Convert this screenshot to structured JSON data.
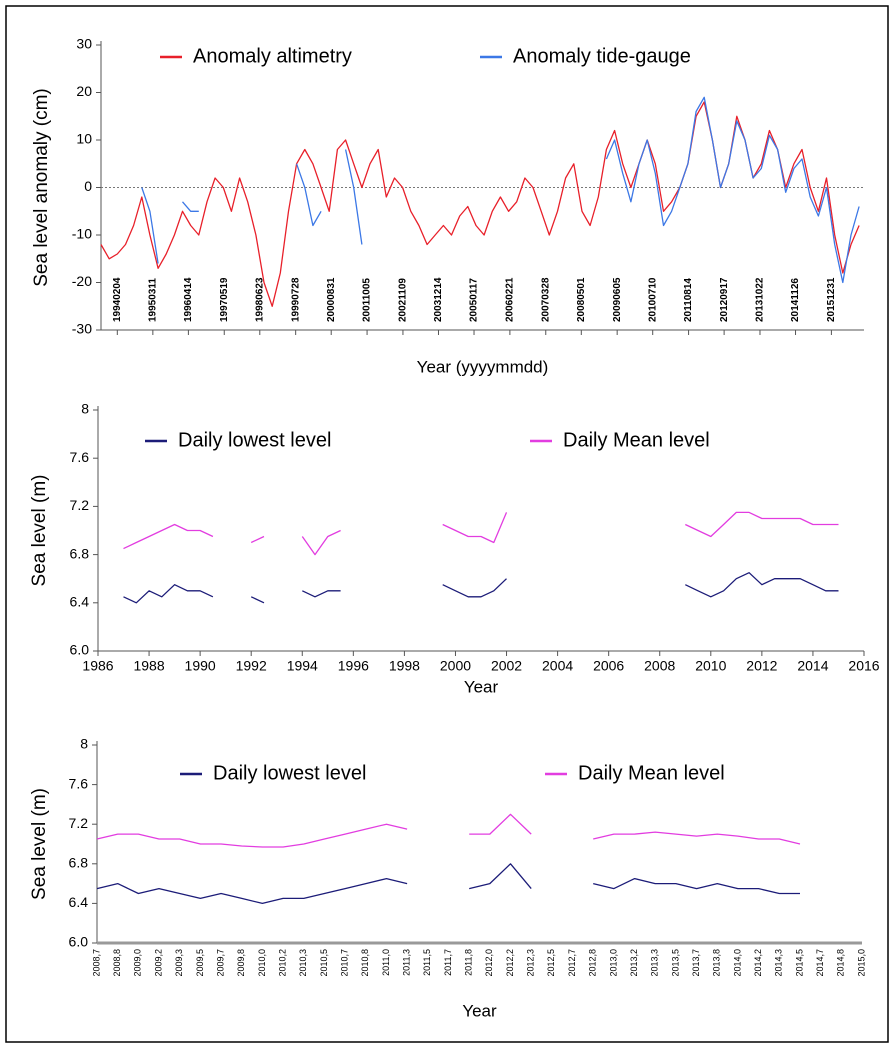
{
  "chart_data": [
    {
      "type": "line",
      "ylabel": "Sea level anomaly (cm)",
      "xlabel": "Year (yyyymmdd)",
      "xlim": [
        1993.6,
        2017.0
      ],
      "ylim": [
        -30,
        30
      ],
      "yticks": [
        -30,
        -20,
        -10,
        0,
        10,
        20,
        30
      ],
      "hline": 0,
      "xticks": [
        {
          "value": 1994.1,
          "label": "19940204"
        },
        {
          "value": 1995.19,
          "label": "19950311"
        },
        {
          "value": 1996.28,
          "label": "19960414"
        },
        {
          "value": 1997.38,
          "label": "19970519"
        },
        {
          "value": 1998.47,
          "label": "19980623"
        },
        {
          "value": 1999.57,
          "label": "19990728"
        },
        {
          "value": 2000.66,
          "label": "20000831"
        },
        {
          "value": 2001.76,
          "label": "20011005"
        },
        {
          "value": 2002.86,
          "label": "20021109"
        },
        {
          "value": 2003.95,
          "label": "20031214"
        },
        {
          "value": 2005.04,
          "label": "20050117"
        },
        {
          "value": 2006.14,
          "label": "20060221"
        },
        {
          "value": 2007.24,
          "label": "20070328"
        },
        {
          "value": 2008.33,
          "label": "20080501"
        },
        {
          "value": 2009.43,
          "label": "20090605"
        },
        {
          "value": 2010.52,
          "label": "20100710"
        },
        {
          "value": 2011.62,
          "label": "20110814"
        },
        {
          "value": 2012.71,
          "label": "20120917"
        },
        {
          "value": 2013.81,
          "label": "20131022"
        },
        {
          "value": 2014.9,
          "label": "20141126"
        },
        {
          "value": 2016.0,
          "label": "20151231"
        }
      ],
      "x": [
        1993.6,
        1993.85,
        1994.1,
        1994.35,
        1994.6,
        1994.85,
        1995.1,
        1995.35,
        1995.6,
        1995.85,
        1996.1,
        1996.35,
        1996.6,
        1996.85,
        1997.1,
        1997.35,
        1997.6,
        1997.85,
        1998.1,
        1998.35,
        1998.6,
        1998.85,
        1999.1,
        1999.35,
        1999.6,
        1999.85,
        2000.1,
        2000.35,
        2000.6,
        2000.85,
        2001.1,
        2001.35,
        2001.6,
        2001.85,
        2002.1,
        2002.35,
        2002.6,
        2002.85,
        2003.1,
        2003.35,
        2003.6,
        2003.85,
        2004.1,
        2004.35,
        2004.6,
        2004.85,
        2005.1,
        2005.35,
        2005.6,
        2005.85,
        2006.1,
        2006.35,
        2006.6,
        2006.85,
        2007.1,
        2007.35,
        2007.6,
        2007.85,
        2008.1,
        2008.35,
        2008.6,
        2008.85,
        2009.1,
        2009.35,
        2009.6,
        2009.85,
        2010.1,
        2010.35,
        2010.6,
        2010.85,
        2011.1,
        2011.35,
        2011.6,
        2011.85,
        2012.1,
        2012.35,
        2012.6,
        2012.85,
        2013.1,
        2013.35,
        2013.6,
        2013.85,
        2014.1,
        2014.35,
        2014.6,
        2014.85,
        2015.1,
        2015.35,
        2015.6,
        2015.85,
        2016.1,
        2016.35,
        2016.6,
        2016.85
      ],
      "series": [
        {
          "name": "Anomaly altimetry",
          "color": "#e8202a",
          "values": [
            -12,
            -15,
            -14,
            -12,
            -8,
            -2,
            -10,
            -17,
            -14,
            -10,
            -5,
            -8,
            -10,
            -3,
            2,
            0,
            -5,
            2,
            -3,
            -10,
            -20,
            -25,
            -18,
            -5,
            5,
            8,
            5,
            0,
            -5,
            8,
            10,
            5,
            0,
            5,
            8,
            -2,
            2,
            0,
            -5,
            -8,
            -12,
            -10,
            -8,
            -10,
            -6,
            -4,
            -8,
            -10,
            -5,
            -2,
            -5,
            -3,
            2,
            0,
            -5,
            -10,
            -5,
            2,
            5,
            -5,
            -8,
            -2,
            8,
            12,
            5,
            0,
            5,
            10,
            5,
            -5,
            -3,
            0,
            5,
            15,
            18,
            10,
            0,
            5,
            15,
            10,
            2,
            5,
            12,
            8,
            0,
            5,
            8,
            0,
            -5,
            2,
            -10,
            -18,
            -12,
            -8
          ]
        },
        {
          "name": "Anomaly tide-gauge",
          "color": "#3c78e6",
          "values": [
            null,
            null,
            null,
            null,
            null,
            0,
            -5,
            -16,
            null,
            null,
            -3,
            -5,
            -5,
            null,
            null,
            null,
            null,
            null,
            null,
            null,
            null,
            null,
            null,
            null,
            5,
            0,
            -8,
            -5,
            null,
            null,
            8,
            0,
            -12,
            null,
            null,
            null,
            null,
            null,
            null,
            null,
            null,
            null,
            null,
            null,
            null,
            null,
            null,
            null,
            null,
            null,
            null,
            null,
            null,
            null,
            null,
            null,
            null,
            null,
            null,
            null,
            null,
            null,
            6,
            10,
            3,
            -3,
            5,
            10,
            3,
            -8,
            -5,
            0,
            5,
            16,
            19,
            10,
            0,
            5,
            14,
            10,
            2,
            4,
            11,
            8,
            -1,
            4,
            6,
            -2,
            -6,
            0,
            -12,
            -20,
            -10,
            -4
          ]
        }
      ]
    },
    {
      "type": "line",
      "ylabel": "Sea level (m)",
      "xlabel": "Year",
      "xlim": [
        1986,
        2016
      ],
      "xticks": [
        1986,
        1988,
        1990,
        1992,
        1994,
        1996,
        1998,
        2000,
        2002,
        2004,
        2006,
        2008,
        2010,
        2012,
        2014,
        2016
      ],
      "ylim": [
        6.0,
        8
      ],
      "yticks": [
        {
          "value": 6.0,
          "label": "6.0"
        },
        6.4,
        6.8,
        7.2,
        7.6,
        8
      ],
      "x": [
        1986.5,
        1987.0,
        1987.5,
        1988.0,
        1988.5,
        1989.0,
        1989.5,
        1990.0,
        1990.5,
        1991.0,
        1991.5,
        1992.0,
        1992.5,
        1993.0,
        1993.5,
        1994.0,
        1994.5,
        1995.0,
        1995.5,
        1996.0,
        1996.5,
        1997.0,
        1997.5,
        1998.0,
        1998.5,
        1999.0,
        1999.5,
        2000.0,
        2000.5,
        2001.0,
        2001.5,
        2002.0,
        2002.5,
        2003.0,
        2003.5,
        2004.0,
        2004.5,
        2005.0,
        2005.5,
        2006.0,
        2006.5,
        2007.0,
        2007.5,
        2008.0,
        2008.5,
        2009.0,
        2009.5,
        2010.0,
        2010.5,
        2011.0,
        2011.5,
        2012.0,
        2012.5,
        2013.0,
        2013.5,
        2014.0,
        2014.5,
        2015.0,
        2015.5
      ],
      "series": [
        {
          "name": "Daily lowest level",
          "color": "#1c1c78",
          "values": [
            null,
            6.45,
            6.4,
            6.5,
            6.45,
            6.55,
            6.5,
            6.5,
            6.45,
            null,
            null,
            6.45,
            6.4,
            null,
            null,
            6.5,
            6.45,
            6.5,
            6.5,
            null,
            null,
            null,
            null,
            null,
            null,
            null,
            6.55,
            6.5,
            6.45,
            6.45,
            6.5,
            6.6,
            null,
            null,
            null,
            null,
            null,
            null,
            null,
            null,
            null,
            null,
            null,
            null,
            null,
            6.55,
            6.5,
            6.45,
            6.5,
            6.6,
            6.65,
            6.55,
            6.6,
            6.6,
            6.6,
            6.55,
            6.5,
            6.5,
            null
          ]
        },
        {
          "name": "Daily Mean level",
          "color": "#e23de0",
          "values": [
            null,
            6.85,
            6.9,
            6.95,
            7.0,
            7.05,
            7.0,
            7.0,
            6.95,
            null,
            null,
            6.9,
            6.95,
            null,
            null,
            6.95,
            6.8,
            6.95,
            7.0,
            null,
            null,
            null,
            null,
            null,
            null,
            null,
            7.05,
            7.0,
            6.95,
            6.95,
            6.9,
            7.15,
            null,
            null,
            null,
            null,
            null,
            null,
            null,
            null,
            null,
            null,
            null,
            null,
            null,
            7.05,
            7.0,
            6.95,
            7.05,
            7.15,
            7.15,
            7.1,
            7.1,
            7.1,
            7.1,
            7.05,
            7.05,
            7.05,
            null
          ]
        }
      ]
    },
    {
      "type": "line",
      "ylabel": "Sea level (m)",
      "xlabel": "Year",
      "ylim": [
        6.0,
        8
      ],
      "yticks": [
        {
          "value": 6.0,
          "label": "6.0"
        },
        6.4,
        6.8,
        7.2,
        7.6,
        8
      ],
      "categories": [
        "2008,7",
        "2008,8",
        "2009,0",
        "2009,2",
        "2009,3",
        "2009,5",
        "2009,7",
        "2009,8",
        "2010,0",
        "2010,2",
        "2010,3",
        "2010,5",
        "2010,7",
        "2010,8",
        "2011,0",
        "2011,3",
        "2011,5",
        "2011,7",
        "2011,8",
        "2012,0",
        "2012,2",
        "2012,3",
        "2012,5",
        "2012,7",
        "2012,8",
        "2013,0",
        "2013,2",
        "2013,3",
        "2013,5",
        "2013,7",
        "2013,8",
        "2014,0",
        "2014,2",
        "2014,3",
        "2014,5",
        "2014,7",
        "2014,8",
        "2015,0"
      ],
      "series": [
        {
          "name": "Daily lowest level",
          "color": "#1c1c78",
          "values": [
            6.55,
            6.6,
            6.5,
            6.55,
            6.5,
            6.45,
            6.5,
            6.45,
            6.4,
            6.45,
            6.45,
            6.5,
            6.55,
            6.6,
            6.65,
            6.6,
            null,
            null,
            6.55,
            6.6,
            6.8,
            6.55,
            null,
            null,
            6.6,
            6.55,
            6.65,
            6.6,
            6.6,
            6.55,
            6.6,
            6.55,
            6.55,
            6.5,
            6.5,
            null,
            null,
            6.55
          ]
        },
        {
          "name": "Daily Mean level",
          "color": "#e23de0",
          "values": [
            7.05,
            7.1,
            7.1,
            7.05,
            7.05,
            7.0,
            7.0,
            6.98,
            6.97,
            6.97,
            7.0,
            7.05,
            7.1,
            7.15,
            7.2,
            7.15,
            null,
            null,
            7.1,
            7.1,
            7.3,
            7.1,
            null,
            null,
            7.05,
            7.1,
            7.1,
            7.12,
            7.1,
            7.08,
            7.1,
            7.08,
            7.05,
            7.05,
            7.0,
            null,
            null,
            7.05
          ]
        }
      ]
    }
  ]
}
